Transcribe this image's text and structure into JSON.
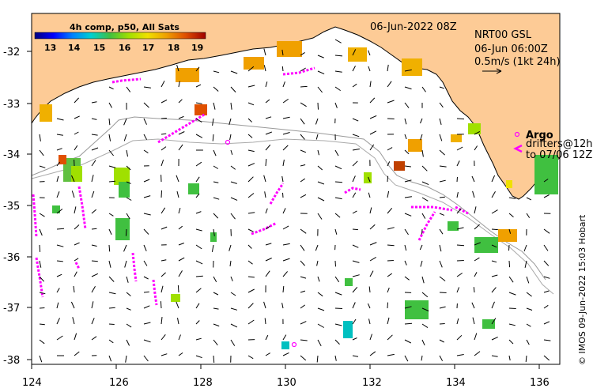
{
  "map": {
    "date_label": "06-Jun-2022 08Z",
    "current_product": "NRT00 GSL",
    "current_time": "06-Jun 06:00Z",
    "current_scale": "0.5m/s (1kt 24h)",
    "colorbar_title": "4h comp, p50, All Sats",
    "colorbar_ticks": [
      "13",
      "14",
      "15",
      "16",
      "17",
      "18",
      "19"
    ],
    "colorbar_colors": [
      "#00007f",
      "#0000ff",
      "#0080ff",
      "#00d0d0",
      "#40c040",
      "#a0e000",
      "#f0e000",
      "#f0a000",
      "#e05000",
      "#a00000"
    ],
    "argo_label": "Argo",
    "drifters_label": "drifters@12h",
    "drifters_to": "to 07/06 12Z",
    "copyright": "© IMOS 09-Jun-2022 15:03 Hobart",
    "land_color": "#fdcb96",
    "track_color": "#ff00ff",
    "contour_color": "#999999"
  },
  "axes": {
    "x_ticks": [
      "124",
      "126",
      "128",
      "130",
      "132",
      "134",
      "136"
    ],
    "y_ticks": [
      "-32",
      "-33",
      "-34",
      "-35",
      "-36",
      "-37",
      "-38"
    ]
  }
}
